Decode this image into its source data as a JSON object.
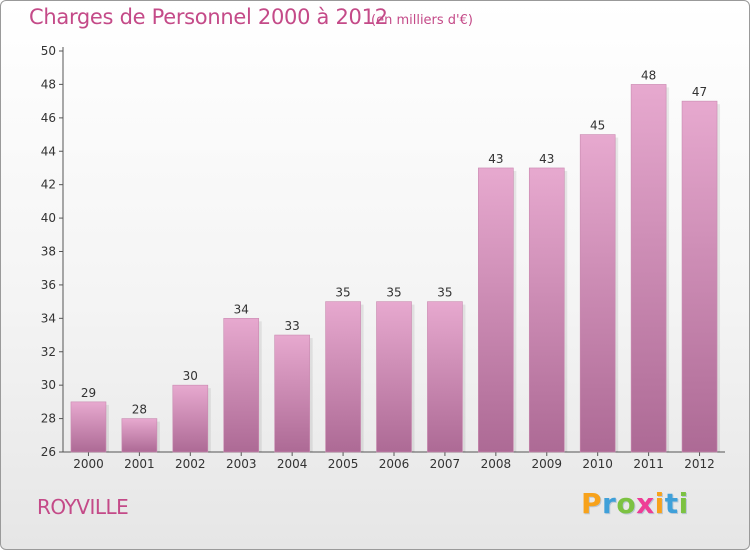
{
  "header": {
    "title": "Charges de Personnel 2000 à 2012",
    "unit": "(en milliers d'€)"
  },
  "footer": {
    "commune": "ROYVILLE",
    "logo": {
      "letters": [
        "P",
        "r",
        "o",
        "x",
        "i",
        "t",
        "i"
      ],
      "colors": [
        "#f7a21b",
        "#3fa0d9",
        "#7cc242",
        "#ee3d96",
        "#f7a21b",
        "#3fa0d9",
        "#7cc242"
      ]
    }
  },
  "chart_data": {
    "type": "bar",
    "title": "Charges de Personnel 2000 à 2012",
    "subtitle": "(en milliers d'€)",
    "categories": [
      "2000",
      "2001",
      "2002",
      "2003",
      "2004",
      "2005",
      "2006",
      "2007",
      "2008",
      "2009",
      "2010",
      "2011",
      "2012"
    ],
    "values": [
      29,
      28,
      30,
      34,
      33,
      35,
      35,
      35,
      43,
      43,
      45,
      48,
      47
    ],
    "data_labels": [
      "29",
      "28",
      "30",
      "34",
      "33",
      "35",
      "35",
      "35",
      "43",
      "43",
      "45",
      "48",
      "47"
    ],
    "ylim": [
      26,
      50
    ],
    "yticks": [
      26,
      28,
      30,
      32,
      34,
      36,
      38,
      40,
      42,
      44,
      46,
      48,
      50
    ],
    "ytick_labels": [
      "26",
      "28",
      "30",
      "32",
      "34",
      "36",
      "38",
      "40",
      "42",
      "44",
      "46",
      "48",
      "50"
    ],
    "grid": false,
    "colors": {
      "bar_top": "#e7a9cf",
      "bar_bottom": "#ad6a95",
      "axis": "#555555",
      "text": "#333333"
    }
  }
}
